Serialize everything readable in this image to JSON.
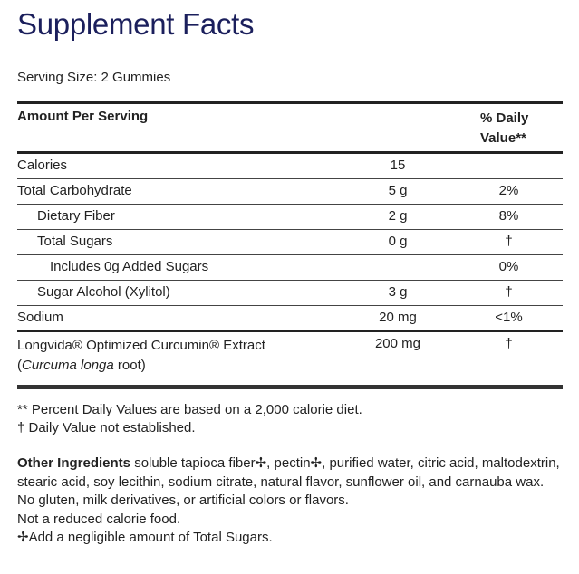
{
  "title": "Supplement Facts",
  "serving_size": "Serving Size: 2 Gummies",
  "header": {
    "amount": "Amount Per Serving",
    "dv_line1": "% Daily",
    "dv_line2": "Value**"
  },
  "rows": [
    {
      "name": "Calories",
      "amount": "15",
      "dv": ""
    },
    {
      "name": "Total Carbohydrate",
      "amount": "5 g",
      "dv": "2%"
    },
    {
      "name": "Dietary Fiber",
      "amount": "2 g",
      "dv": "8%"
    },
    {
      "name": "Total Sugars",
      "amount": "0 g",
      "dv": "†"
    },
    {
      "name": "Includes 0g Added Sugars",
      "amount": "",
      "dv": "0%"
    },
    {
      "name": "Sugar Alcohol (Xylitol)",
      "amount": "3 g",
      "dv": "†"
    },
    {
      "name": "Sodium",
      "amount": "20 mg",
      "dv": "<1%"
    }
  ],
  "extract": {
    "name": "Longvida® Optimized Curcumin® Extract",
    "paren_open": "(",
    "latin": "Curcuma longa",
    "paren_rest": " root)",
    "amount": "200 mg",
    "dv": "†"
  },
  "footnotes": [
    "** Percent Daily Values are based on a 2,000 calorie diet.",
    "† Daily Value not established."
  ],
  "ingredients": {
    "label": "Other Ingredients",
    "text": " soluble tapioca fiber✢, pectin✢, purified water, citric acid, maltodextrin, stearic acid, soy lecithin, sodium citrate, natural flavor, sunflower oil, and carnauba wax."
  },
  "notes": [
    "No gluten, milk derivatives, or artificial colors or flavors.",
    "Not a reduced calorie food.",
    "✢Add a negligible amount of Total Sugars."
  ]
}
